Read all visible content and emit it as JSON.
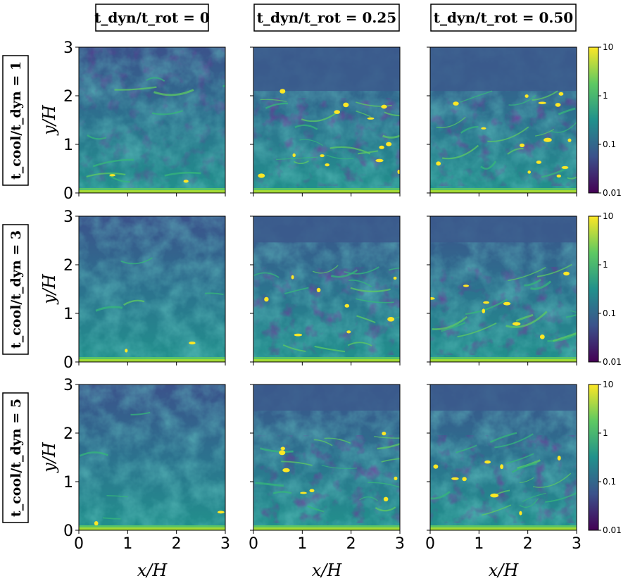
{
  "figure": {
    "column_titles": [
      "t_dyn/t_rot = 0",
      "t_dyn/t_rot = 0.25",
      "t_dyn/t_rot = 0.50"
    ],
    "row_titles": [
      "t_cool/t_dyn = 1",
      "t_cool/t_dyn = 3",
      "t_cool/t_dyn = 5"
    ],
    "colormap": "viridis",
    "colormap_stops": [
      "#440154",
      "#3b528b",
      "#21918c",
      "#5ec962",
      "#fde725"
    ]
  },
  "chart_data": {
    "type": "heatmap",
    "layout": "3x3 grid of panels",
    "xlabel": "x/H",
    "ylabel": "y/H",
    "xlim": [
      0,
      3
    ],
    "ylim": [
      0,
      3
    ],
    "xticks": [
      "0",
      "1",
      "2",
      "3"
    ],
    "yticks": [
      "0",
      "1",
      "2",
      "3"
    ],
    "colorbar": {
      "scale": "log",
      "range": [
        0.01,
        10
      ],
      "ticks": [
        "10",
        "1",
        "0.1",
        "0.01"
      ],
      "placement": "right of each row"
    },
    "panels": [
      {
        "row": 1,
        "col": 1,
        "column_title": "t_dyn/t_rot = 0",
        "row_title": "t_cool/t_dyn = 1"
      },
      {
        "row": 1,
        "col": 2,
        "column_title": "t_dyn/t_rot = 0.25",
        "row_title": "t_cool/t_dyn = 1"
      },
      {
        "row": 1,
        "col": 3,
        "column_title": "t_dyn/t_rot = 0.50",
        "row_title": "t_cool/t_dyn = 1"
      },
      {
        "row": 2,
        "col": 1,
        "column_title": "t_dyn/t_rot = 0",
        "row_title": "t_cool/t_dyn = 3"
      },
      {
        "row": 2,
        "col": 2,
        "column_title": "t_dyn/t_rot = 0.25",
        "row_title": "t_cool/t_dyn = 3"
      },
      {
        "row": 2,
        "col": 3,
        "column_title": "t_dyn/t_rot = 0.50",
        "row_title": "t_cool/t_dyn = 3"
      },
      {
        "row": 3,
        "col": 1,
        "column_title": "t_dyn/t_rot = 0",
        "row_title": "t_cool/t_dyn = 5"
      },
      {
        "row": 3,
        "col": 2,
        "column_title": "t_dyn/t_rot = 0.25",
        "row_title": "t_cool/t_dyn = 5"
      },
      {
        "row": 3,
        "col": 3,
        "column_title": "t_dyn/t_rot = 0.50",
        "row_title": "t_cool/t_dyn = 5"
      }
    ]
  }
}
